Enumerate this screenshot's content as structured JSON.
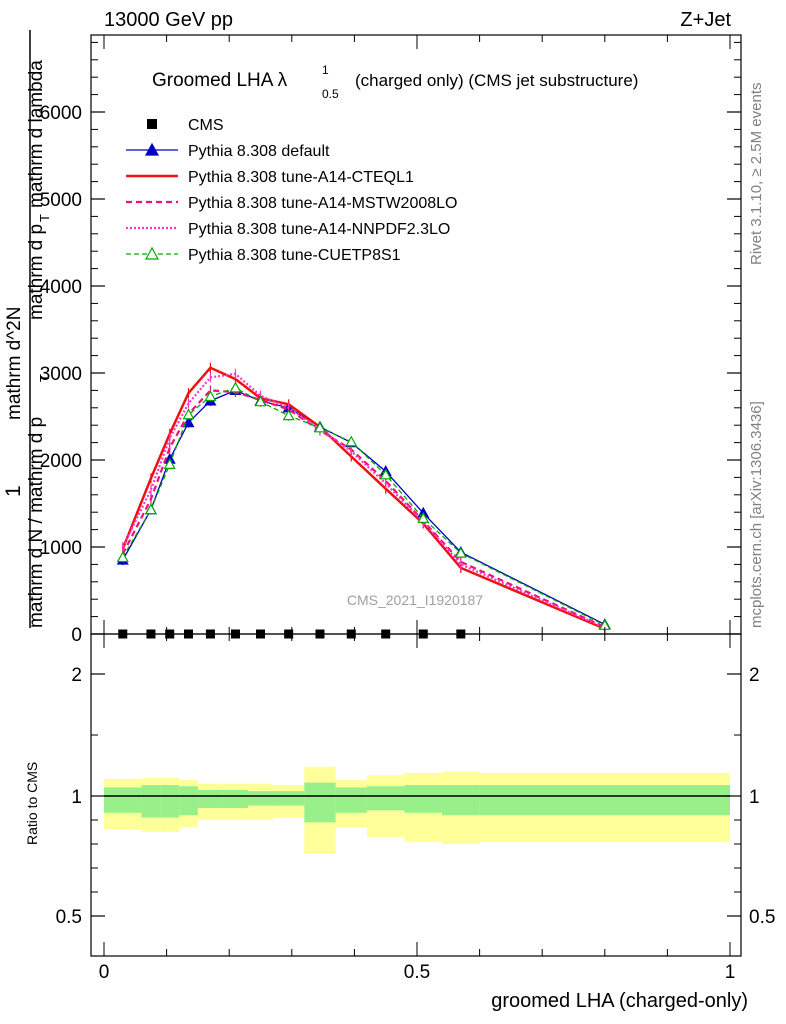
{
  "header": {
    "left": "13000 GeV pp",
    "right": "Z+Jet"
  },
  "side": {
    "rivet": "Rivet 3.1.10, ≥ 2.5M events",
    "mcplots": "mcplots.cern.ch [arXiv:1306.3436]"
  },
  "chart_data": {
    "type": "line",
    "title_main": "Groomed LHA λ",
    "title_sup": "1",
    "title_sub": "0.5",
    "title_rest": "(charged only) (CMS jet substructure)",
    "watermark": "CMS_2021_I1920187",
    "ylabel_parts": [
      "1",
      "mathrm d N / mathrm d p",
      "T",
      "mathrm d^2N",
      "mathrm d p",
      "T",
      "mathrm d lambda"
    ],
    "xlabel": "groomed LHA (charged-only)",
    "ratio_ylabel": "Ratio to CMS",
    "ylim": [
      0,
      6000
    ],
    "xlim": [
      0,
      1
    ],
    "ratio_ylim": [
      0.4,
      2.3
    ],
    "yticks": [
      {
        "v": 0,
        "label": "0"
      },
      {
        "v": 1000,
        "label": "1000"
      },
      {
        "v": 2000,
        "label": "2000"
      },
      {
        "v": 3000,
        "label": "3000"
      },
      {
        "v": 4000,
        "label": "4000"
      },
      {
        "v": 5000,
        "label": "5000"
      },
      {
        "v": 6000,
        "label": "6000"
      }
    ],
    "xticks": [
      {
        "v": 0,
        "label": "0"
      },
      {
        "v": 0.5,
        "label": "0.5"
      },
      {
        "v": 1,
        "label": "1"
      }
    ],
    "ratio_ticks": [
      {
        "v": 0.5,
        "label": "0.5"
      },
      {
        "v": 1,
        "label": "1"
      },
      {
        "v": 2,
        "label": "2"
      }
    ],
    "legend": [
      {
        "name": "CMS",
        "color": "#000000",
        "style": "marker",
        "marker": "square"
      },
      {
        "name": "Pythia 8.308 default",
        "color": "#0000c0",
        "style": "solid",
        "marker": "triangle"
      },
      {
        "name": "Pythia 8.308 tune-A14-CTEQL1",
        "color": "#ee1111",
        "style": "solid",
        "marker": "none"
      },
      {
        "name": "Pythia 8.308 tune-A14-MSTW2008LO",
        "color": "#ee1177",
        "style": "dashed",
        "marker": "none"
      },
      {
        "name": "Pythia 8.308 tune-A14-NNPDF2.3LO",
        "color": "#ff33cc",
        "style": "dotted",
        "marker": "none"
      },
      {
        "name": "Pythia 8.308 tune-CUETP8S1",
        "color": "#00aa00",
        "style": "dashed",
        "marker": "open-triangle"
      }
    ],
    "x": [
      0.03,
      0.075,
      0.105,
      0.135,
      0.17,
      0.21,
      0.25,
      0.295,
      0.345,
      0.395,
      0.45,
      0.51,
      0.57,
      0.8
    ],
    "cms": {
      "name": "CMS",
      "values": [
        0,
        0,
        0,
        0,
        0,
        0,
        0,
        0,
        0,
        0,
        0,
        0,
        0
      ]
    },
    "cms_x": [
      0.03,
      0.075,
      0.105,
      0.135,
      0.17,
      0.21,
      0.25,
      0.295,
      0.345,
      0.395,
      0.45,
      0.51,
      0.57
    ],
    "series": [
      {
        "name": "Pythia 8.308 default",
        "values": [
          850,
          1430,
          2010,
          2430,
          2680,
          2800,
          2680,
          2600,
          2380,
          2200,
          1870,
          1390,
          940,
          110
        ]
      },
      {
        "name": "Pythia 8.308 tune-A14-CTEQL1",
        "values": [
          980,
          1790,
          2300,
          2770,
          3060,
          2930,
          2710,
          2640,
          2380,
          2040,
          1670,
          1270,
          760,
          60
        ]
      },
      {
        "name": "Pythia 8.308 tune-A14-MSTW2008LO",
        "values": [
          920,
          1550,
          2140,
          2530,
          2800,
          2780,
          2690,
          2580,
          2340,
          2120,
          1760,
          1300,
          830,
          80
        ]
      },
      {
        "name": "Pythia 8.308 tune-A14-NNPDF2.3LO",
        "values": [
          1000,
          1660,
          2250,
          2650,
          2950,
          2990,
          2740,
          2600,
          2350,
          2100,
          1730,
          1290,
          800,
          70
        ]
      },
      {
        "name": "Pythia 8.308 tune-CUETP8S1",
        "values": [
          880,
          1430,
          1950,
          2520,
          2730,
          2830,
          2670,
          2510,
          2370,
          2210,
          1830,
          1330,
          930,
          100
        ]
      }
    ],
    "ratio_bands": {
      "edges": [
        0,
        0.06,
        0.09,
        0.12,
        0.15,
        0.19,
        0.23,
        0.27,
        0.32,
        0.37,
        0.42,
        0.48,
        0.54,
        0.6,
        1
      ],
      "inner_lo": [
        0.93,
        0.91,
        0.91,
        0.92,
        0.95,
        0.95,
        0.96,
        0.96,
        0.89,
        0.93,
        0.94,
        0.93,
        0.92,
        0.92
      ],
      "inner_hi": [
        1.07,
        1.09,
        1.09,
        1.08,
        1.05,
        1.05,
        1.04,
        1.04,
        1.11,
        1.07,
        1.08,
        1.09,
        1.09,
        1.09
      ],
      "outer_lo": [
        0.86,
        0.85,
        0.85,
        0.87,
        0.9,
        0.9,
        0.9,
        0.91,
        0.76,
        0.87,
        0.83,
        0.81,
        0.8,
        0.81
      ],
      "outer_hi": [
        1.14,
        1.15,
        1.15,
        1.13,
        1.1,
        1.1,
        1.1,
        1.09,
        1.24,
        1.13,
        1.17,
        1.19,
        1.2,
        1.19
      ]
    },
    "colors": {
      "inner_band": "#99f08a",
      "outer_band": "#ffff99"
    }
  }
}
